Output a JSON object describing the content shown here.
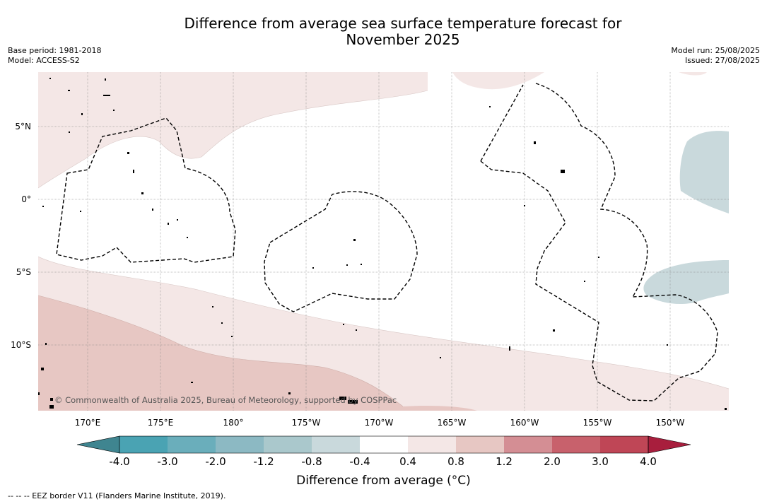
{
  "header": {
    "title_line1": "Difference from average sea surface temperature forecast for",
    "title_line2": "November 2025",
    "base_period": "Base period: 1981-2018",
    "model": "Model: ACCESS-S2",
    "model_run": "Model run: 25/08/2025",
    "issued": "Issued: 27/08/2025"
  },
  "map": {
    "lon_ticks": [
      "170°E",
      "175°E",
      "180°",
      "175°W",
      "170°W",
      "165°W",
      "160°W",
      "155°W",
      "150°W"
    ],
    "lat_ticks": [
      "5°N",
      "0°",
      "5°S",
      "10°S"
    ],
    "copyright": "© Commonwealth of Australia 2025, Bureau of Meteorology, supported by COSPPac"
  },
  "colorbar": {
    "label": "Difference from average (°C)",
    "tick_labels": [
      "-4.0",
      "-3.0",
      "-2.0",
      "-1.2",
      "-0.8",
      "-0.4",
      "0.4",
      "0.8",
      "1.2",
      "2.0",
      "3.0",
      "4.0"
    ],
    "colors": [
      "#4aa3b3",
      "#6aaebb",
      "#8cb9c3",
      "#aac8cc",
      "#c9d9dc",
      "#ffffff",
      "#f4e7e6",
      "#e7c7c3",
      "#d48e94",
      "#c8616c",
      "#bf4656"
    ],
    "under_color": "#3f8590",
    "over_color": "#a81e3d"
  },
  "legend": {
    "eez_text": "--  --  -- EEZ border V11 (Flanders Marine Institute, 2019)."
  }
}
